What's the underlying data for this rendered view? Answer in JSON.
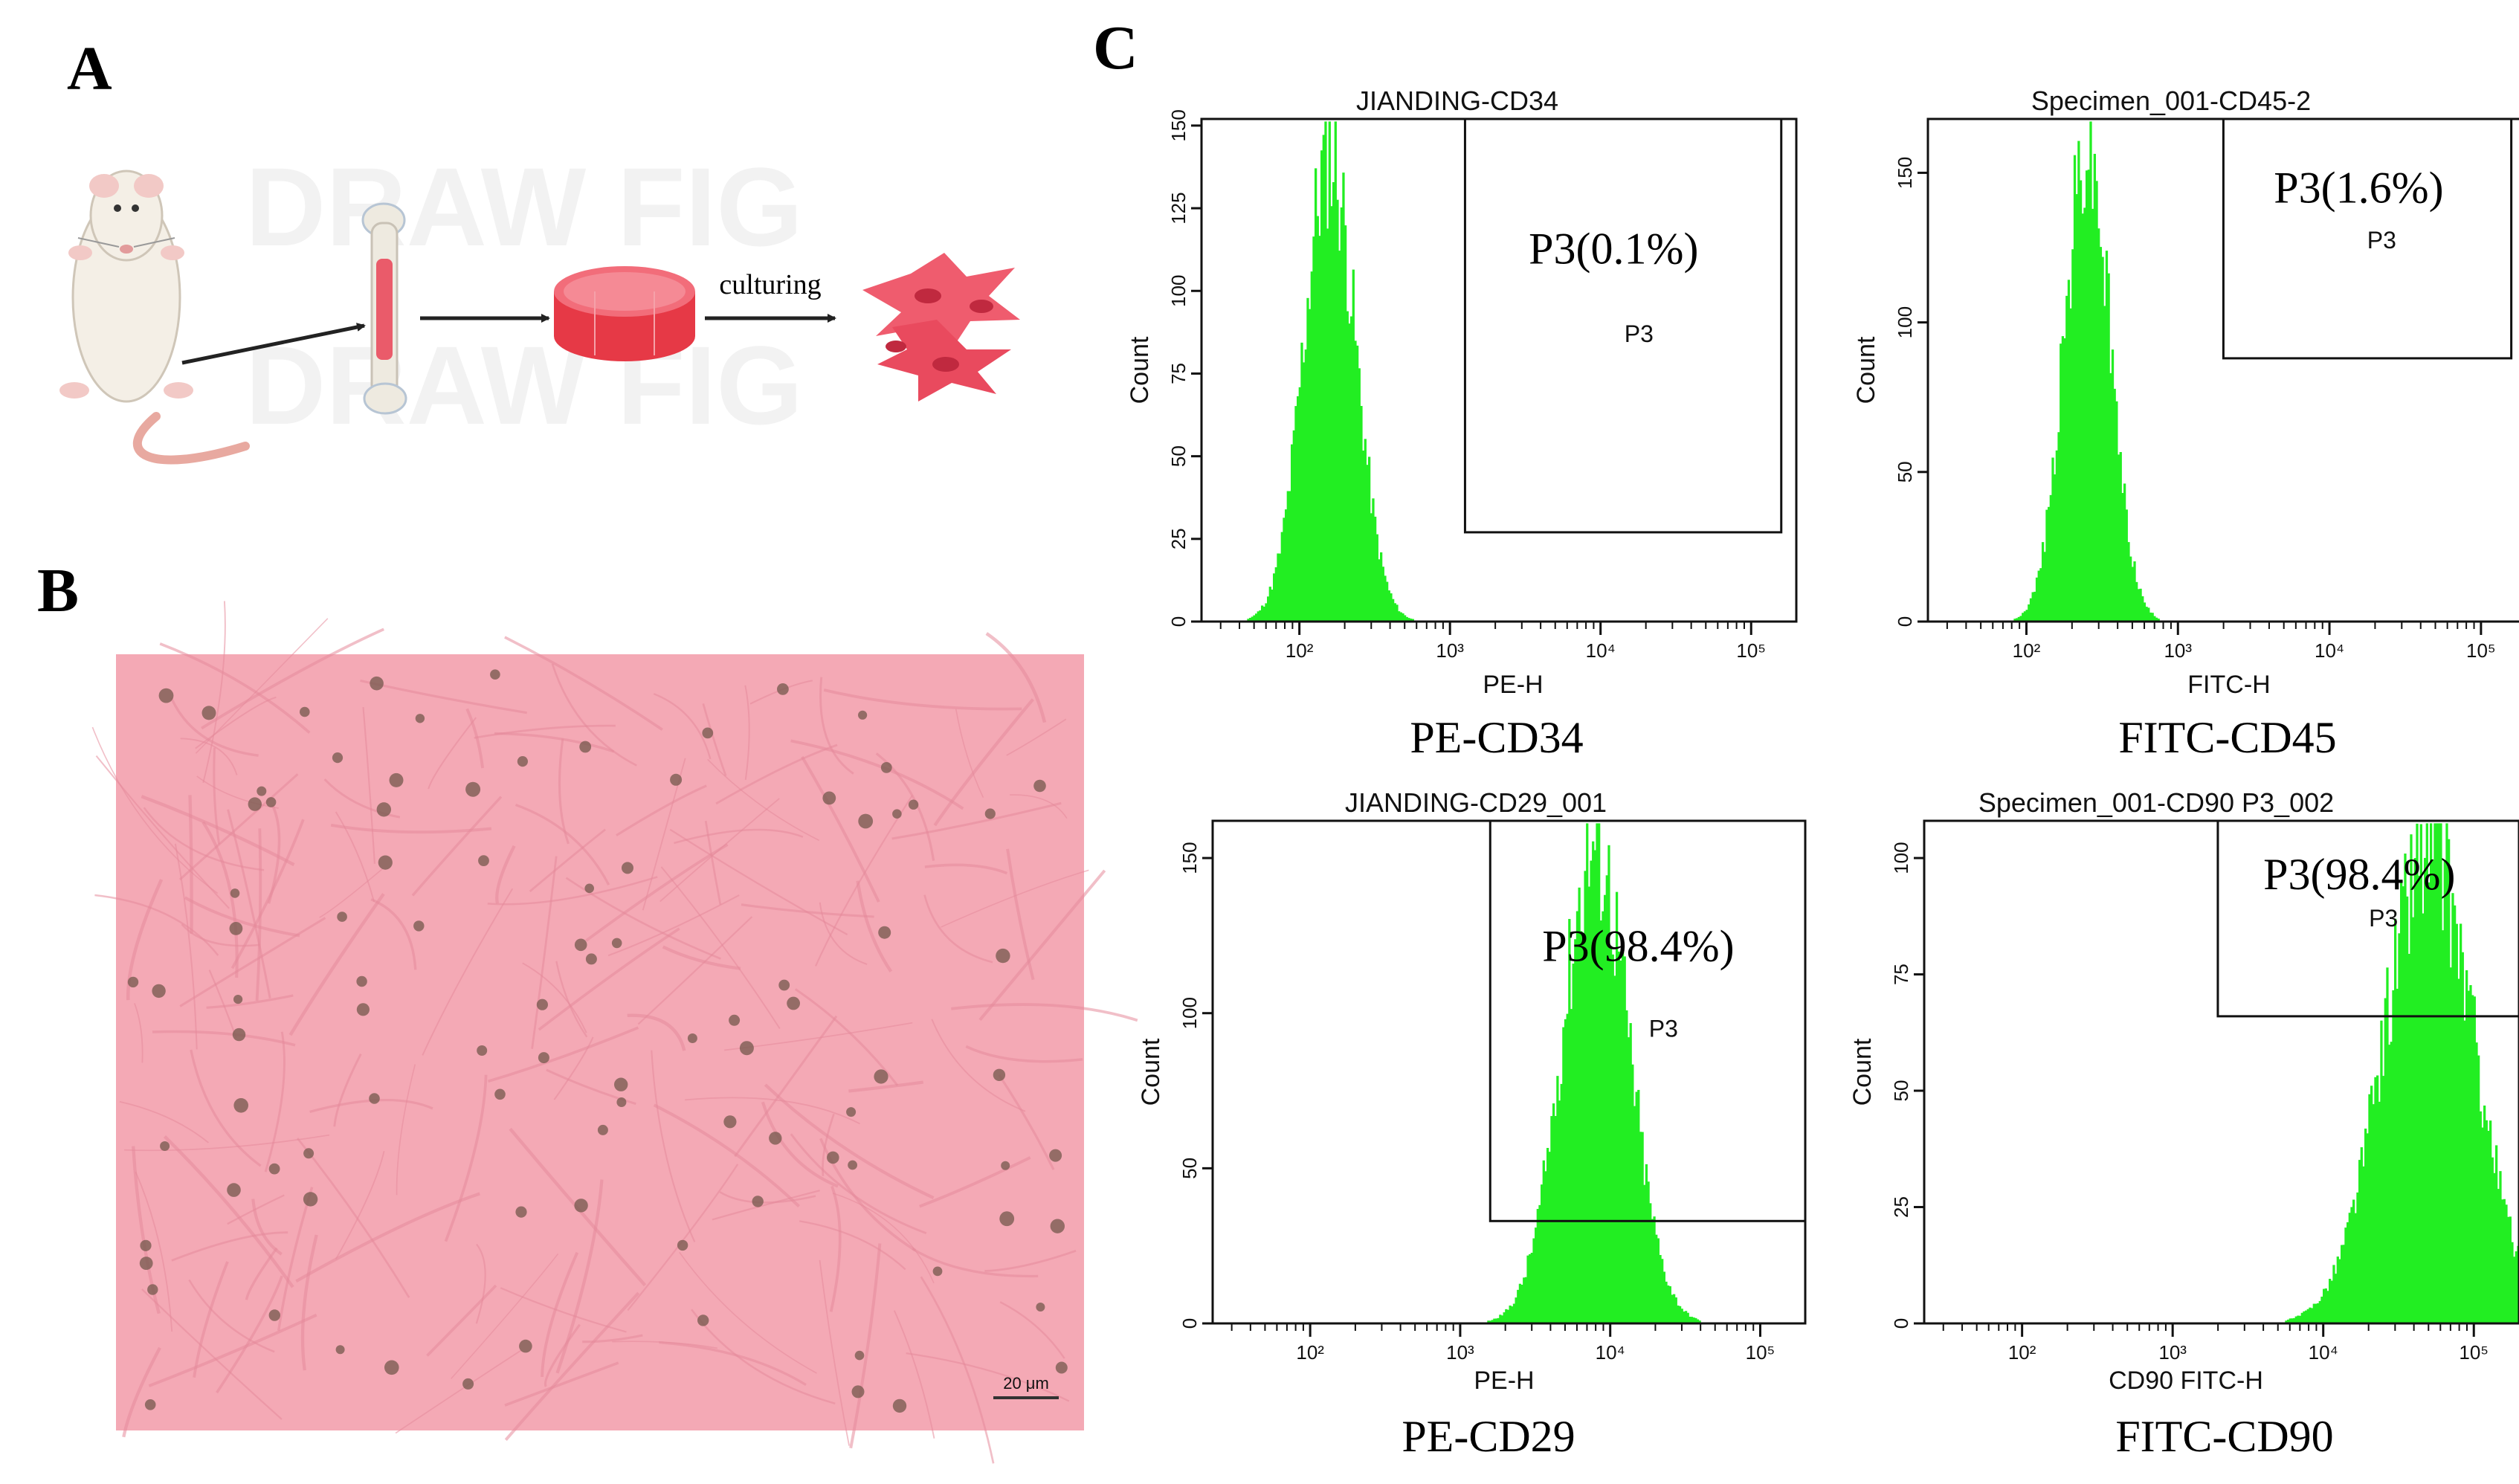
{
  "panels": {
    "a": {
      "letter": "A",
      "arrow_label": "culturing",
      "watermark_text": "DRAW FIG"
    },
    "b": {
      "letter": "B",
      "scale_bar_label": "20 μm",
      "colors": {
        "background": "#f4a9b5",
        "cell": "#7c5d52",
        "fiber": "#e58a9a"
      }
    },
    "c": {
      "letter": "C"
    }
  },
  "chart_data": [
    {
      "type": "histogram",
      "title": "JIANDING-CD34",
      "xlabel": "PE-H",
      "ylabel": "Count",
      "x_scale": "log",
      "x_tick_labels": [
        "10²",
        "10³",
        "10⁴",
        "10⁵"
      ],
      "y_ticks": [
        0,
        25,
        50,
        75,
        100,
        125,
        150
      ],
      "ylim": [
        0,
        152
      ],
      "fill_color": "#22ee22",
      "peak": {
        "center_log": 2.2,
        "spread_log": 0.17,
        "max_count": 147
      },
      "gate": {
        "name": "P3",
        "percent_label": "P3(0.1%)",
        "x_from_log": 3.1,
        "x_to_log": 5.2,
        "y_from": 27,
        "y_to": 152
      },
      "caption": "PE-CD34"
    },
    {
      "type": "histogram",
      "title": "Specimen_001-CD45-2",
      "xlabel": "FITC-H",
      "ylabel": "Count",
      "x_scale": "log",
      "x_tick_labels": [
        "10²",
        "10³",
        "10⁴",
        "10⁵"
      ],
      "y_ticks": [
        0,
        50,
        100,
        150
      ],
      "ylim": [
        0,
        168
      ],
      "fill_color": "#22ee22",
      "peak": {
        "center_log": 2.4,
        "spread_log": 0.15,
        "max_count": 165
      },
      "gate": {
        "name": "P3",
        "percent_label": "P3(1.6%)",
        "x_from_log": 3.3,
        "x_to_log": 5.2,
        "y_from": 88,
        "y_to": 168
      },
      "caption": "FITC-CD45"
    },
    {
      "type": "histogram",
      "title": "JIANDING-CD29_001",
      "xlabel": "PE-H",
      "ylabel": "Count",
      "x_scale": "log",
      "x_tick_labels": [
        "10²",
        "10³",
        "10⁴",
        "10⁵"
      ],
      "y_ticks": [
        0,
        50,
        100,
        150
      ],
      "ylim": [
        0,
        162
      ],
      "fill_color": "#22ee22",
      "peak": {
        "center_log": 3.9,
        "spread_log": 0.22,
        "max_count": 160
      },
      "gate": {
        "name": "P3",
        "percent_label": "P3(98.4%)",
        "x_from_log": 3.2,
        "x_to_log": 5.3,
        "y_from": 33,
        "y_to": 162
      },
      "caption": "PE-CD29"
    },
    {
      "type": "histogram",
      "title": "Specimen_001-CD90 P3_002",
      "xlabel": "CD90 FITC-H",
      "ylabel": "Count",
      "x_scale": "log",
      "x_tick_labels": [
        "10²",
        "10³",
        "10⁴",
        "10⁵"
      ],
      "y_ticks": [
        0,
        25,
        50,
        75,
        100
      ],
      "ylim": [
        0,
        108
      ],
      "fill_color": "#22ee22",
      "peak": {
        "center_log": 4.7,
        "spread_log": 0.3,
        "max_count": 106
      },
      "gate": {
        "name": "P3",
        "percent_label": "P3(98.4%)",
        "x_from_log": 3.3,
        "x_to_log": 5.4,
        "y_from": 66,
        "y_to": 108
      },
      "caption": "FITC-CD90"
    }
  ]
}
